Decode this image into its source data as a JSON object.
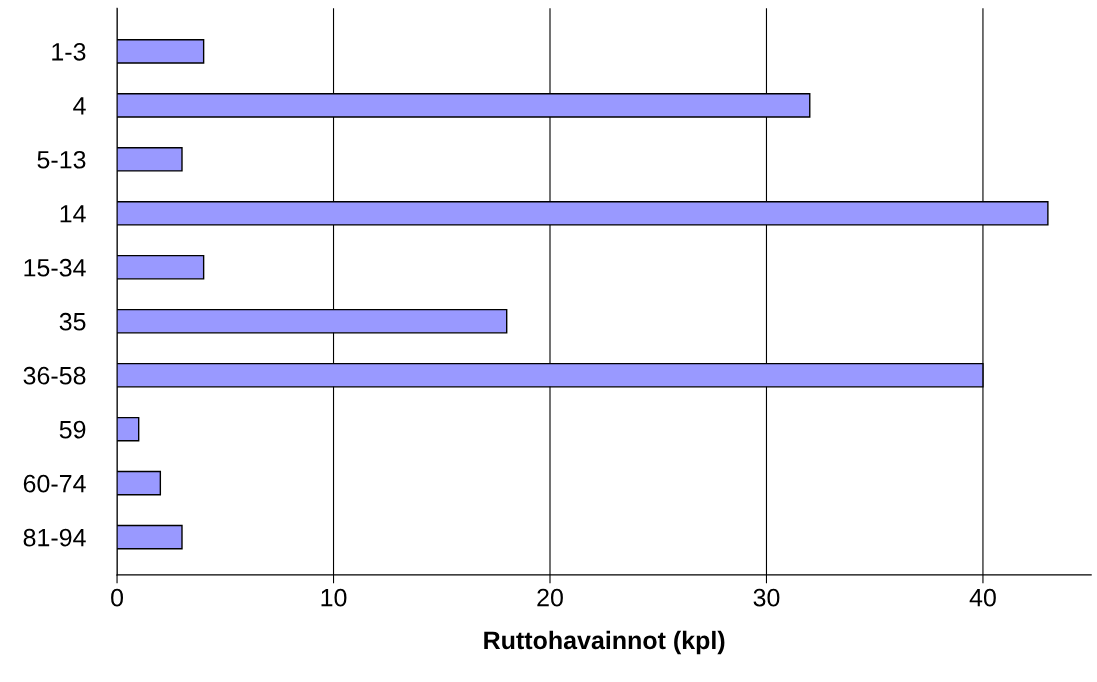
{
  "chart_data": {
    "type": "bar",
    "orientation": "horizontal",
    "xlabel": "Ruttohavainnot (kpl)",
    "categories": [
      "1-3",
      "4",
      "5-13",
      "14",
      "15-34",
      "35",
      "36-58",
      "59",
      "60-74",
      "81-94"
    ],
    "values": [
      4,
      32,
      3,
      43,
      4,
      18,
      40,
      1,
      2,
      3
    ],
    "color": "#9999ff",
    "xlim": [
      0,
      45
    ],
    "xticks": [
      0,
      10,
      20,
      30,
      40
    ],
    "grid": "x",
    "legend": false
  }
}
